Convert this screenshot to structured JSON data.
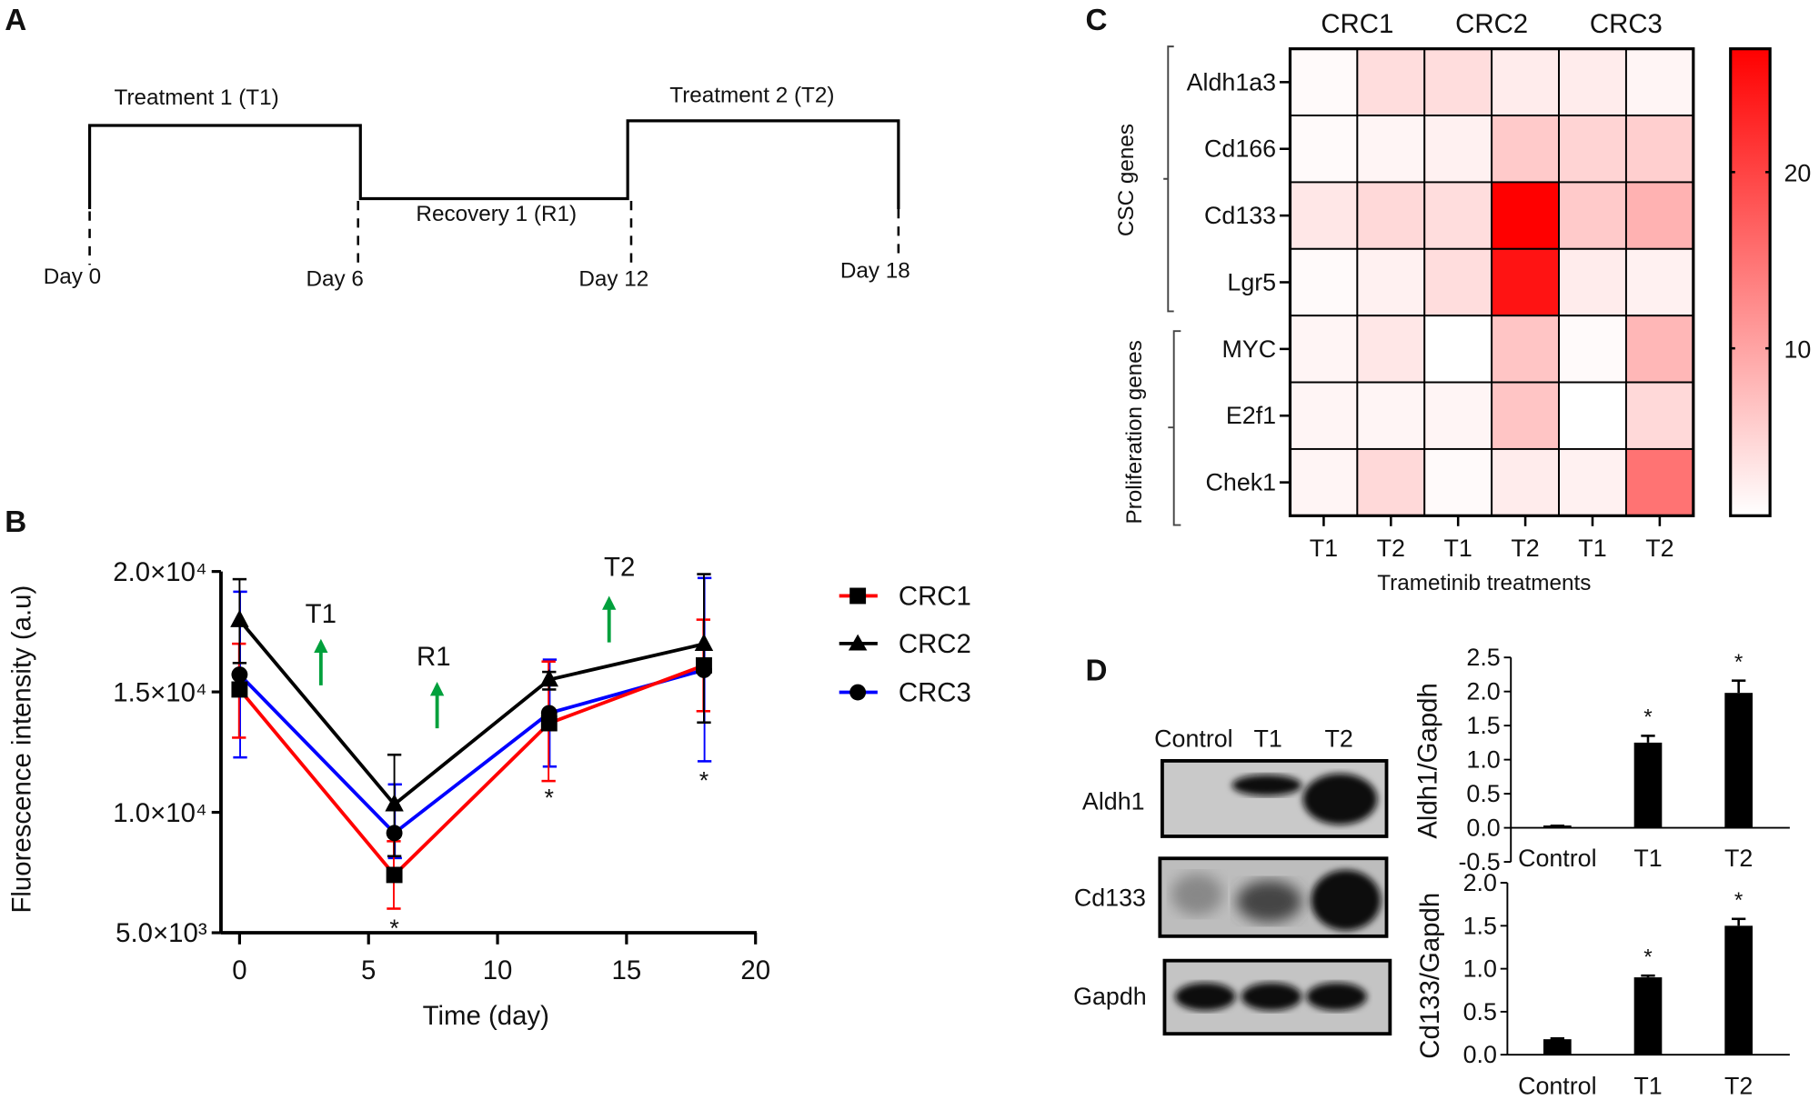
{
  "panel_labels": {
    "a": "A",
    "b": "B",
    "c": "C",
    "d": "D"
  },
  "timeline": {
    "phases": [
      "Treatment  1 (T1)",
      "Recovery  1 (R1)",
      "Treatment  2 (T2)"
    ],
    "days": [
      "Day 0",
      "Day 6",
      "Day 12",
      "Day 18"
    ]
  },
  "chart_data": [
    {
      "type": "line",
      "panel": "B",
      "xlabel": "Time (day)",
      "ylabel": "Fluorescence intensity (a.u)",
      "xlim": [
        0,
        20
      ],
      "ylim": [
        5000,
        20000
      ],
      "x_ticks": [
        "0",
        "5",
        "10",
        "15",
        "20"
      ],
      "y_ticks": [
        "5.0×10³",
        "1.0×10⁴",
        "1.5×10⁴",
        "2.0×10⁴"
      ],
      "x": [
        0,
        6,
        12,
        18
      ],
      "legend_position": "right",
      "series": [
        {
          "name": "CRC1",
          "color": "#ff0000",
          "marker": "square",
          "values": [
            15100,
            7400,
            13700,
            16100
          ],
          "err_low": [
            13100,
            6000,
            11300,
            14200
          ],
          "err_high": [
            17000,
            8800,
            16260,
            18000
          ]
        },
        {
          "name": "CRC2",
          "color": "#000000",
          "marker": "triangle",
          "values": [
            17980,
            10330,
            15510,
            16990
          ],
          "err_low": [
            16200,
            8180,
            15100,
            13730
          ],
          "err_high": [
            19680,
            12390,
            15830,
            19890
          ]
        },
        {
          "name": "CRC3",
          "color": "#0000ff",
          "marker": "circle",
          "values": [
            15720,
            9140,
            14120,
            15910
          ],
          "err_low": [
            12280,
            8100,
            11900,
            12120
          ],
          "err_high": [
            19160,
            11160,
            16340,
            19730
          ]
        }
      ],
      "annotations": [
        {
          "text": "T1",
          "arrow_color": "#00a03c"
        },
        {
          "text": "R1",
          "arrow_color": "#00a03c"
        },
        {
          "text": "T2",
          "arrow_color": "#00a03c"
        }
      ],
      "significance_marks": [
        "*",
        "*",
        "*"
      ]
    },
    {
      "type": "heatmap",
      "panel": "C",
      "groups": [
        "CRC1",
        "CRC2",
        "CRC3"
      ],
      "columns": [
        "T1",
        "T2",
        "T1",
        "T2",
        "T1",
        "T2"
      ],
      "rows": [
        "Aldh1a3",
        "Cd166",
        "Cd133",
        "Lgr5",
        "MYC",
        "E2f1",
        "Chek1"
      ],
      "row_groups": [
        "CSC  genes",
        "Proliferation  genes"
      ],
      "xlabel": "Trametinib  treatments",
      "values": [
        [
          1.0,
          4.0,
          4.0,
          2.5,
          2.5,
          1.5
        ],
        [
          1.0,
          1.5,
          2.0,
          6.0,
          5.0,
          5.5
        ],
        [
          3.0,
          4.5,
          4.0,
          27.0,
          6.0,
          8.5
        ],
        [
          1.0,
          2.0,
          4.0,
          25.0,
          2.5,
          2.0
        ],
        [
          1.5,
          3.0,
          0.5,
          6.5,
          1.0,
          8.0
        ],
        [
          1.5,
          1.5,
          1.5,
          6.5,
          0.5,
          4.5
        ],
        [
          1.5,
          4.5,
          1.0,
          2.5,
          2.0,
          15.0
        ]
      ],
      "color_range": [
        0.5,
        27
      ],
      "colors": [
        "#ffffff",
        "#ff0000"
      ],
      "colorbar_ticks": [
        "10",
        "20"
      ]
    },
    {
      "type": "bar",
      "panel": "D",
      "ylabel": "Aldh1/Gapdh",
      "categories": [
        "Control",
        "T1",
        "T2"
      ],
      "values": [
        0.02,
        1.25,
        1.98
      ],
      "errors": [
        0.01,
        0.1,
        0.18
      ],
      "significance": [
        "",
        "*",
        "*"
      ],
      "ylim": [
        -0.5,
        2.5
      ],
      "y_ticks": [
        "-0.5",
        "0.0",
        "0.5",
        "1.0",
        "1.5",
        "2.0",
        "2.5"
      ]
    },
    {
      "type": "bar",
      "panel": "D",
      "ylabel": "Cd133/Gapdh",
      "categories": [
        "Control",
        "T1",
        "T2"
      ],
      "values": [
        0.18,
        0.9,
        1.5
      ],
      "errors": [
        0.01,
        0.02,
        0.08
      ],
      "significance": [
        "",
        "*",
        "*"
      ],
      "ylim": [
        0,
        2.0
      ],
      "y_ticks": [
        "0.0",
        "0.5",
        "1.0",
        "1.5",
        "2.0"
      ]
    }
  ],
  "blot": {
    "lanes": [
      "Control",
      "T1",
      "T2"
    ],
    "proteins": [
      "Aldh1",
      "Cd133",
      "Gapdh"
    ]
  }
}
